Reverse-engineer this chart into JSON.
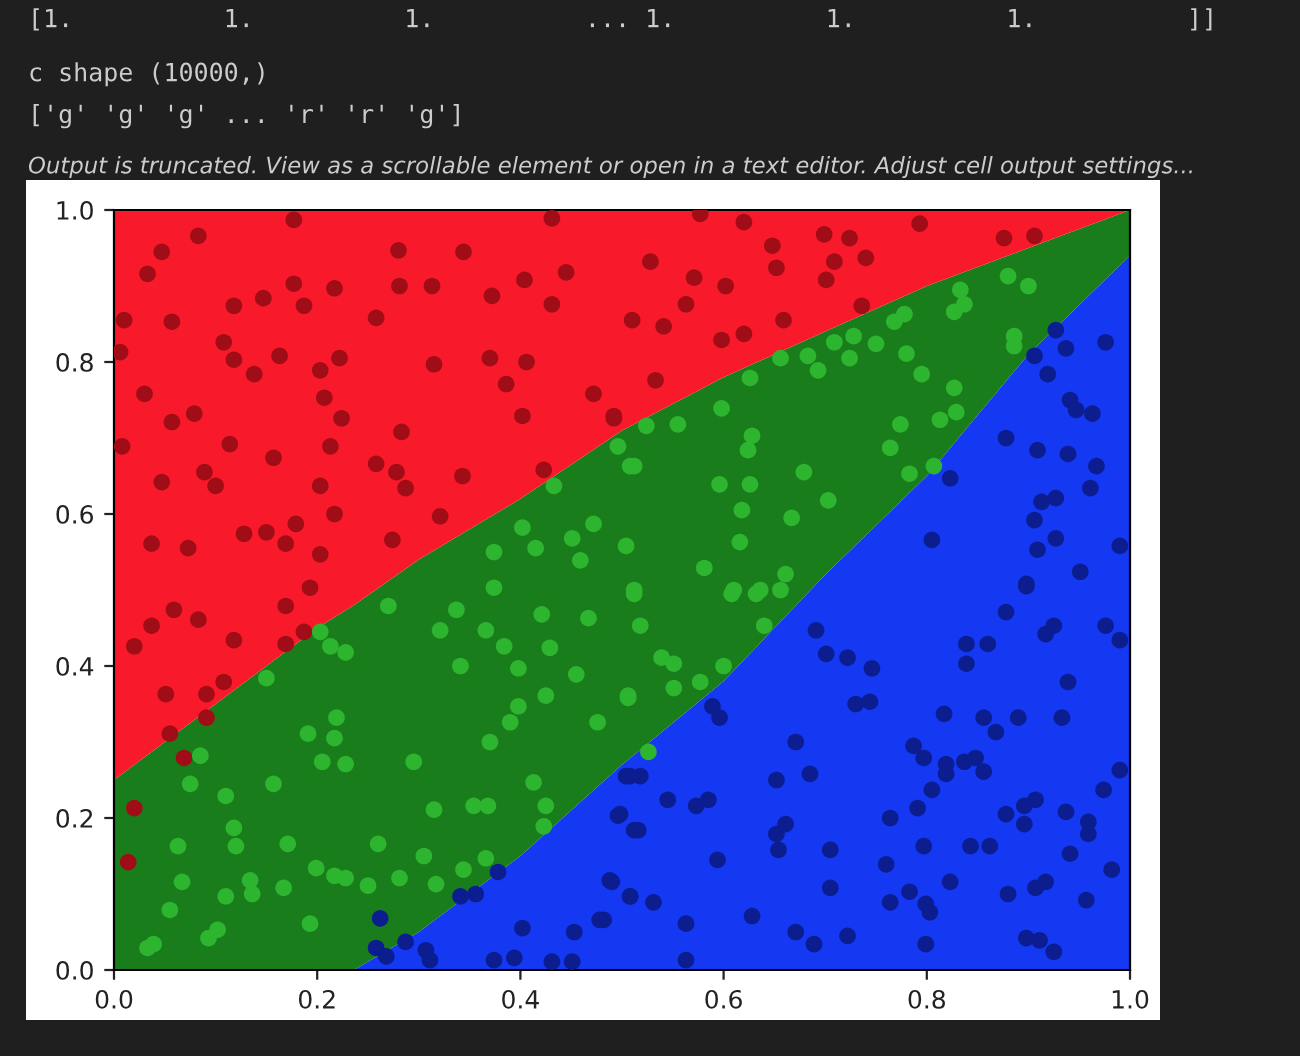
{
  "chart_data": {
    "type": "area",
    "stacked": true,
    "annotations": [
      "[1.          1.          1.          ... 1.          1.          1.          ]]",
      "c shape (10000,)",
      "['g' 'g' 'g' ... 'r' 'r' 'g']",
      "Output is truncated. View as a scrollable element or open in a text editor. Adjust cell output settings..."
    ],
    "x": [
      0,
      0.1,
      0.2,
      0.236,
      0.3,
      0.4,
      0.5,
      0.6,
      0.7,
      0.8,
      0.9,
      1.0
    ],
    "series": [
      {
        "color": "#1538f2",
        "values": [
          0,
          0,
          0,
          0,
          0.05,
          0.15,
          0.27,
          0.38,
          0.52,
          0.65,
          0.81,
          0.94
        ]
      },
      {
        "color": "#1a7d1c",
        "values": [
          0.25,
          0.35,
          0.45,
          0.48,
          0.49,
          0.47,
          0.44,
          0.4,
          0.32,
          0.25,
          0.14,
          0.06
        ]
      },
      {
        "color": "#f81a2b",
        "values": [
          0.75,
          0.65,
          0.55,
          0.52,
          0.46,
          0.38,
          0.29,
          0.22,
          0.16,
          0.1,
          0.05,
          0
        ]
      },
      {
        "type": "scatter",
        "marker": "circle",
        "color": "#a00d16",
        "x": [
          0.177,
          0.083,
          0.047,
          0.033,
          0.01,
          0.006,
          0.057,
          0.118,
          0.147,
          0.177,
          0.217,
          0.187,
          0.28,
          0.281,
          0.313,
          0.344,
          0.372,
          0.404,
          0.431,
          0.445,
          0.431,
          0.258,
          0.108,
          0.118,
          0.138,
          0.163,
          0.203,
          0.222,
          0.315,
          0.37,
          0.406,
          0.386,
          0.402,
          0.472,
          0.492,
          0.03,
          0.008,
          0.057,
          0.079,
          0.114,
          0.157,
          0.207,
          0.224,
          0.213,
          0.283,
          0.258,
          0.278,
          0.287,
          0.343,
          0.423,
          0.321,
          0.089,
          0.1,
          0.047,
          0.203,
          0.217,
          0.179,
          0.128,
          0.15,
          0.169,
          0.073,
          0.037,
          0.274,
          0.203,
          0.577,
          0.62,
          0.793,
          0.876,
          0.906,
          0.699,
          0.724,
          0.648,
          0.74,
          0.709,
          0.528,
          0.571,
          0.602,
          0.652,
          0.701,
          0.563,
          0.736,
          0.659,
          0.51,
          0.541,
          0.62,
          0.598,
          0.533,
          0.492,
          0.02,
          0.037,
          0.059,
          0.083,
          0.118,
          0.051,
          0.091,
          0.108,
          0.091,
          0.055,
          0.069,
          0.169,
          0.187,
          0.169,
          0.193,
          0.02,
          0.014
        ],
        "values": [
          0.987,
          0.966,
          0.945,
          0.916,
          0.855,
          0.813,
          0.853,
          0.874,
          0.884,
          0.903,
          0.897,
          0.874,
          0.947,
          0.9,
          0.9,
          0.945,
          0.887,
          0.908,
          0.989,
          0.918,
          0.876,
          0.858,
          0.826,
          0.803,
          0.784,
          0.808,
          0.789,
          0.805,
          0.797,
          0.805,
          0.8,
          0.771,
          0.729,
          0.758,
          0.726,
          0.758,
          0.689,
          0.721,
          0.732,
          0.692,
          0.674,
          0.753,
          0.726,
          0.689,
          0.708,
          0.666,
          0.655,
          0.634,
          0.65,
          0.658,
          0.597,
          0.655,
          0.637,
          0.642,
          0.637,
          0.6,
          0.587,
          0.574,
          0.576,
          0.561,
          0.555,
          0.561,
          0.566,
          0.547,
          0.995,
          0.984,
          0.982,
          0.963,
          0.966,
          0.968,
          0.963,
          0.953,
          0.937,
          0.932,
          0.932,
          0.911,
          0.9,
          0.924,
          0.908,
          0.876,
          0.874,
          0.855,
          0.855,
          0.847,
          0.837,
          0.829,
          0.776,
          0.729,
          0.426,
          0.453,
          0.474,
          0.461,
          0.434,
          0.363,
          0.363,
          0.379,
          0.332,
          0.311,
          0.279,
          0.429,
          0.445,
          0.479,
          0.503,
          0.213,
          0.142
        ]
      },
      {
        "type": "scatter",
        "marker": "circle",
        "color": "#2db52f",
        "x": [
          0.496,
          0.508,
          0.433,
          0.472,
          0.451,
          0.459,
          0.504,
          0.402,
          0.415,
          0.374,
          0.374,
          0.833,
          0.827,
          0.837,
          0.88,
          0.9,
          0.778,
          0.768,
          0.728,
          0.709,
          0.75,
          0.724,
          0.683,
          0.693,
          0.656,
          0.626,
          0.78,
          0.795,
          0.886,
          0.886,
          0.827,
          0.829,
          0.813,
          0.774,
          0.764,
          0.807,
          0.783,
          0.598,
          0.555,
          0.524,
          0.628,
          0.624,
          0.512,
          0.679,
          0.596,
          0.626,
          0.703,
          0.618,
          0.667,
          0.616,
          0.581,
          0.661,
          0.61,
          0.636,
          0.512,
          0.27,
          0.321,
          0.337,
          0.366,
          0.384,
          0.341,
          0.398,
          0.425,
          0.429,
          0.421,
          0.467,
          0.455,
          0.506,
          0.476,
          0.398,
          0.39,
          0.37,
          0.203,
          0.213,
          0.228,
          0.15,
          0.219,
          0.217,
          0.191,
          0.228,
          0.205,
          0.295,
          0.413,
          0.425,
          0.423,
          0.354,
          0.368,
          0.315,
          0.085,
          0.075,
          0.157,
          0.11,
          0.118,
          0.12,
          0.063,
          0.067,
          0.171,
          0.199,
          0.217,
          0.228,
          0.134,
          0.136,
          0.11,
          0.167,
          0.055,
          0.039,
          0.033,
          0.102,
          0.093,
          0.193,
          0.25,
          0.26,
          0.281,
          0.305,
          0.317,
          0.344,
          0.366,
          0.512,
          0.608,
          0.632,
          0.656,
          0.64,
          0.518,
          0.539,
          0.551,
          0.6,
          0.577,
          0.551,
          0.506,
          0.526
        ],
        "values": [
          0.689,
          0.663,
          0.637,
          0.587,
          0.568,
          0.539,
          0.558,
          0.582,
          0.555,
          0.55,
          0.503,
          0.895,
          0.866,
          0.876,
          0.913,
          0.9,
          0.863,
          0.853,
          0.834,
          0.826,
          0.824,
          0.805,
          0.808,
          0.789,
          0.805,
          0.779,
          0.811,
          0.784,
          0.834,
          0.821,
          0.766,
          0.734,
          0.724,
          0.718,
          0.687,
          0.663,
          0.653,
          0.739,
          0.718,
          0.716,
          0.703,
          0.684,
          0.663,
          0.655,
          0.639,
          0.639,
          0.618,
          0.605,
          0.595,
          0.563,
          0.529,
          0.521,
          0.5,
          0.5,
          0.5,
          0.479,
          0.447,
          0.474,
          0.447,
          0.426,
          0.4,
          0.397,
          0.361,
          0.424,
          0.468,
          0.463,
          0.389,
          0.361,
          0.326,
          0.347,
          0.326,
          0.3,
          0.445,
          0.426,
          0.418,
          0.384,
          0.332,
          0.305,
          0.311,
          0.271,
          0.274,
          0.274,
          0.247,
          0.216,
          0.189,
          0.216,
          0.216,
          0.211,
          0.282,
          0.245,
          0.245,
          0.229,
          0.187,
          0.163,
          0.163,
          0.116,
          0.166,
          0.134,
          0.124,
          0.121,
          0.118,
          0.1,
          0.097,
          0.108,
          0.079,
          0.034,
          0.029,
          0.053,
          0.042,
          0.061,
          0.111,
          0.166,
          0.121,
          0.15,
          0.113,
          0.132,
          0.147,
          0.495,
          0.495,
          0.495,
          0.5,
          0.453,
          0.453,
          0.411,
          0.403,
          0.4,
          0.379,
          0.371,
          0.358,
          0.287
        ]
      },
      {
        "type": "scatter",
        "marker": "circle",
        "color": "#0b1d8f",
        "x": [
          0.927,
          0.937,
          0.976,
          0.906,
          0.919,
          0.941,
          0.947,
          0.963,
          0.878,
          0.909,
          0.939,
          0.967,
          0.961,
          0.927,
          0.913,
          0.906,
          0.927,
          0.909,
          0.823,
          0.805,
          0.99,
          0.951,
          0.898,
          0.898,
          0.878,
          0.839,
          0.86,
          0.839,
          0.917,
          0.925,
          0.976,
          0.99,
          0.939,
          0.691,
          0.701,
          0.722,
          0.746,
          0.73,
          0.744,
          0.817,
          0.856,
          0.868,
          0.89,
          0.933,
          0.589,
          0.596,
          0.671,
          0.787,
          0.797,
          0.819,
          0.837,
          0.848,
          0.856,
          0.819,
          0.805,
          0.791,
          0.685,
          0.652,
          0.504,
          0.518,
          0.545,
          0.573,
          0.585,
          0.498,
          0.516,
          0.764,
          0.878,
          0.896,
          0.907,
          0.896,
          0.937,
          0.959,
          0.959,
          0.974,
          0.99,
          0.652,
          0.661,
          0.654,
          0.705,
          0.797,
          0.843,
          0.862,
          0.941,
          0.982,
          0.594,
          0.76,
          0.823,
          0.705,
          0.783,
          0.799,
          0.764,
          0.803,
          0.88,
          0.907,
          0.917,
          0.957,
          0.49,
          0.508,
          0.531,
          0.482,
          0.563,
          0.628,
          0.671,
          0.689,
          0.722,
          0.799,
          0.898,
          0.911,
          0.925,
          0.563,
          0.262,
          0.258,
          0.268,
          0.287,
          0.307,
          0.311,
          0.341,
          0.356,
          0.378,
          0.402,
          0.374,
          0.394,
          0.431,
          0.451,
          0.453,
          0.478,
          0.488,
          0.496,
          0.508,
          0.512,
          0.508
        ],
        "values": [
          0.842,
          0.818,
          0.826,
          0.808,
          0.784,
          0.75,
          0.737,
          0.732,
          0.7,
          0.684,
          0.679,
          0.663,
          0.634,
          0.621,
          0.616,
          0.592,
          0.568,
          0.553,
          0.647,
          0.566,
          0.558,
          0.524,
          0.508,
          0.505,
          0.471,
          0.429,
          0.429,
          0.403,
          0.442,
          0.453,
          0.453,
          0.434,
          0.379,
          0.447,
          0.416,
          0.411,
          0.397,
          0.35,
          0.353,
          0.337,
          0.332,
          0.313,
          0.332,
          0.332,
          0.347,
          0.332,
          0.3,
          0.295,
          0.279,
          0.271,
          0.274,
          0.279,
          0.261,
          0.258,
          0.237,
          0.213,
          0.258,
          0.25,
          0.255,
          0.255,
          0.224,
          0.216,
          0.224,
          0.205,
          0.184,
          0.2,
          0.205,
          0.216,
          0.224,
          0.192,
          0.208,
          0.195,
          0.179,
          0.237,
          0.263,
          0.179,
          0.192,
          0.158,
          0.158,
          0.163,
          0.163,
          0.163,
          0.153,
          0.132,
          0.145,
          0.139,
          0.116,
          0.108,
          0.103,
          0.087,
          0.089,
          0.076,
          0.1,
          0.108,
          0.116,
          0.092,
          0.116,
          0.097,
          0.089,
          0.066,
          0.061,
          0.071,
          0.05,
          0.034,
          0.045,
          0.034,
          0.042,
          0.039,
          0.024,
          0.013,
          0.068,
          0.029,
          0.018,
          0.037,
          0.026,
          0.013,
          0.097,
          0.1,
          0.129,
          0.055,
          0.013,
          0.016,
          0.011,
          0.011,
          0.05,
          0.066,
          0.118,
          0.203,
          0.097,
          0.184,
          0.255
        ]
      }
    ],
    "xlim": [
      0,
      1
    ],
    "ylim": [
      0,
      1
    ],
    "xticks": [
      {
        "value": 0,
        "label": "0.0"
      },
      {
        "value": 0.2,
        "label": "0.2"
      },
      {
        "value": 0.4,
        "label": "0.4"
      },
      {
        "value": 0.6,
        "label": "0.6"
      },
      {
        "value": 0.8,
        "label": "0.8"
      },
      {
        "value": 1,
        "label": "1.0"
      }
    ],
    "yticks": [
      {
        "value": 0,
        "label": "0.0"
      },
      {
        "value": 0.2,
        "label": "0.2"
      },
      {
        "value": 0.4,
        "label": "0.4"
      },
      {
        "value": 0.6,
        "label": "0.6"
      },
      {
        "value": 0.8,
        "label": "0.8"
      },
      {
        "value": 1,
        "label": "1.0"
      }
    ],
    "tick_labels": "xy"
  }
}
